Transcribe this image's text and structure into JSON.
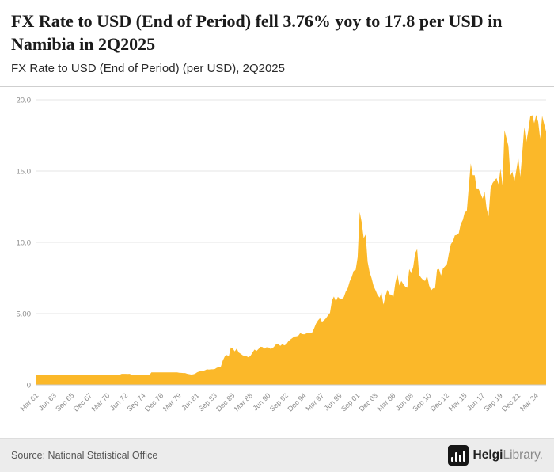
{
  "header": {
    "title": "FX Rate to USD (End of Period) fell 3.76% yoy to 17.8 per USD in Namibia in 2Q2025",
    "subtitle": "FX Rate to USD (End of Period) (per USD), 2Q2025"
  },
  "footer": {
    "source": "Source: National Statistical Office",
    "logo_bold": "Helgi",
    "logo_light": "Library."
  },
  "colors": {
    "area": "#FBB829",
    "grid": "#e4e4e4",
    "baseline": "#c9c9c9",
    "axis_text": "#8b8b8b"
  },
  "chart_data": {
    "type": "area",
    "title": "FX Rate to USD (End of Period) (per USD), 2Q2025",
    "xlabel": "",
    "ylabel": "",
    "ylim": [
      0,
      20
    ],
    "grid": "horizontal",
    "legend": "none",
    "frequency": "quarterly",
    "start": "Mar 1961",
    "end": "Jun 2025",
    "y_ticks": [
      0,
      5,
      10,
      15,
      20
    ],
    "y_tick_labels": [
      "0",
      "5.00",
      "10.0",
      "15.0",
      "20.0"
    ],
    "x_tick_every": 9,
    "x_tick_labels": [
      "Mar 61",
      "Jun 63",
      "Sep 65",
      "Dec 67",
      "Mar 70",
      "Jun 72",
      "Sep 74",
      "Dec 76",
      "Mar 79",
      "Jun 81",
      "Sep 83",
      "Dec 85",
      "Mar 88",
      "Jun 90",
      "Sep 92",
      "Dec 94",
      "Mar 97",
      "Jun 99",
      "Sep 01",
      "Dec 03",
      "Mar 06",
      "Jun 08",
      "Sep 10",
      "Dec 12",
      "Mar 15",
      "Jun 17",
      "Sep 19",
      "Dec 21",
      "Mar 24"
    ],
    "values": [
      0.71,
      0.71,
      0.71,
      0.71,
      0.71,
      0.71,
      0.71,
      0.71,
      0.71,
      0.71,
      0.72,
      0.72,
      0.72,
      0.72,
      0.72,
      0.72,
      0.72,
      0.72,
      0.72,
      0.72,
      0.72,
      0.72,
      0.72,
      0.72,
      0.72,
      0.72,
      0.72,
      0.72,
      0.72,
      0.72,
      0.72,
      0.72,
      0.72,
      0.72,
      0.72,
      0.72,
      0.71,
      0.71,
      0.71,
      0.71,
      0.71,
      0.71,
      0.71,
      0.77,
      0.77,
      0.77,
      0.76,
      0.77,
      0.71,
      0.69,
      0.69,
      0.68,
      0.68,
      0.68,
      0.67,
      0.69,
      0.69,
      0.69,
      0.87,
      0.87,
      0.87,
      0.87,
      0.87,
      0.87,
      0.87,
      0.87,
      0.87,
      0.87,
      0.87,
      0.87,
      0.87,
      0.87,
      0.85,
      0.84,
      0.83,
      0.83,
      0.78,
      0.75,
      0.72,
      0.74,
      0.78,
      0.87,
      0.93,
      0.96,
      0.98,
      1.02,
      1.09,
      1.07,
      1.09,
      1.09,
      1.11,
      1.2,
      1.24,
      1.27,
      1.7,
      2.0,
      2.1,
      2.0,
      2.62,
      2.55,
      2.35,
      2.55,
      2.27,
      2.18,
      2.08,
      2.03,
      2.0,
      1.93,
      2.05,
      2.27,
      2.48,
      2.38,
      2.52,
      2.67,
      2.65,
      2.54,
      2.64,
      2.62,
      2.53,
      2.56,
      2.7,
      2.88,
      2.85,
      2.74,
      2.86,
      2.77,
      2.84,
      3.05,
      3.17,
      3.28,
      3.39,
      3.4,
      3.44,
      3.63,
      3.56,
      3.54,
      3.6,
      3.65,
      3.66,
      3.65,
      3.95,
      4.3,
      4.52,
      4.68,
      4.42,
      4.53,
      4.67,
      4.87,
      5.05,
      5.9,
      6.2,
      5.86,
      6.17,
      6.04,
      6.03,
      6.15,
      6.55,
      6.78,
      7.26,
      7.57,
      8.0,
      8.07,
      8.96,
      12.13,
      11.4,
      10.3,
      10.54,
      8.64,
      7.91,
      7.49,
      6.94,
      6.64,
      6.31,
      6.13,
      6.47,
      5.63,
      6.24,
      6.67,
      6.36,
      6.33,
      6.18,
      7.17,
      7.76,
      6.97,
      7.29,
      7.07,
      6.89,
      6.81,
      8.12,
      7.83,
      8.28,
      9.25,
      9.52,
      7.72,
      7.51,
      7.36,
      7.29,
      7.67,
      6.97,
      6.63,
      6.77,
      6.77,
      8.09,
      8.13,
      7.67,
      8.16,
      8.31,
      8.47,
      9.23,
      9.88,
      10.06,
      10.49,
      10.52,
      10.64,
      11.29,
      11.57,
      12.13,
      12.17,
      13.86,
      15.54,
      14.71,
      14.71,
      13.72,
      13.73,
      13.41,
      13.06,
      13.56,
      12.38,
      11.83,
      13.73,
      14.15,
      14.35,
      14.5,
      14.08,
      15.16,
      14.0,
      17.86,
      17.32,
      16.75,
      14.69,
      14.96,
      14.27,
      15.06,
      15.94,
      14.6,
      16.27,
      18.09,
      17.0,
      17.79,
      18.83,
      18.92,
      18.36,
      18.94,
      18.46,
      17.27,
      18.87,
      18.31,
      17.77
    ]
  }
}
